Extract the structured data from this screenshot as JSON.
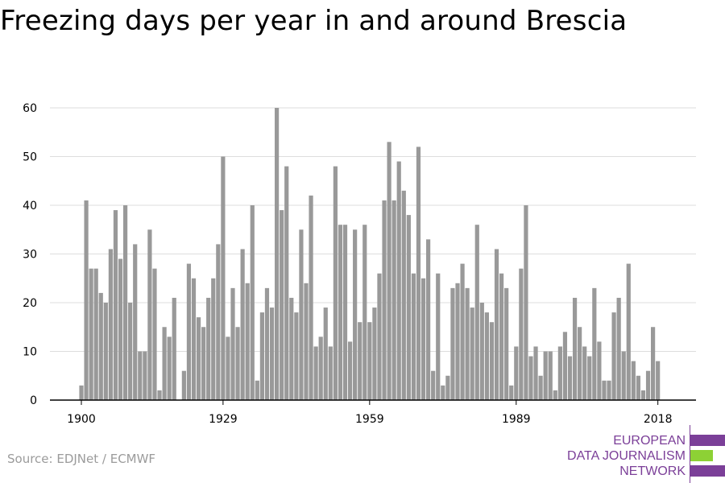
{
  "title": "Freezing days per year in and around Brescia",
  "source": "Source: EDJNet / ECMWF",
  "logo": {
    "lines": [
      "EUROPEAN",
      "DATA JOURNALISM",
      "NETWORK"
    ],
    "colors": {
      "purple": "#7b3f98",
      "green": "#8dd135"
    }
  },
  "colors": {
    "bar": "#999999",
    "grid": "#dddddd",
    "axis": "#000000"
  },
  "chart_data": {
    "type": "bar",
    "title": "Freezing days per year in and around Brescia",
    "xlabel": "",
    "ylabel": "",
    "ylim": [
      0,
      60
    ],
    "yticks": [
      0,
      10,
      20,
      30,
      40,
      50,
      60
    ],
    "xticks": [
      1900,
      1929,
      1959,
      1989,
      2018
    ],
    "grid": true,
    "x": [
      1900,
      1901,
      1902,
      1903,
      1904,
      1905,
      1906,
      1907,
      1908,
      1909,
      1910,
      1911,
      1912,
      1913,
      1914,
      1915,
      1916,
      1917,
      1918,
      1919,
      1920,
      1921,
      1922,
      1923,
      1924,
      1925,
      1926,
      1927,
      1928,
      1929,
      1930,
      1931,
      1932,
      1933,
      1934,
      1935,
      1936,
      1937,
      1938,
      1939,
      1940,
      1941,
      1942,
      1943,
      1944,
      1945,
      1946,
      1947,
      1948,
      1949,
      1950,
      1951,
      1952,
      1953,
      1954,
      1955,
      1956,
      1957,
      1958,
      1959,
      1960,
      1961,
      1962,
      1963,
      1964,
      1965,
      1966,
      1967,
      1968,
      1969,
      1970,
      1971,
      1972,
      1973,
      1974,
      1975,
      1976,
      1977,
      1978,
      1979,
      1980,
      1981,
      1982,
      1983,
      1984,
      1985,
      1986,
      1987,
      1988,
      1989,
      1990,
      1991,
      1992,
      1993,
      1994,
      1995,
      1996,
      1997,
      1998,
      1999,
      2000,
      2001,
      2002,
      2003,
      2004,
      2005,
      2006,
      2007,
      2008,
      2009,
      2010,
      2011,
      2012,
      2013,
      2014,
      2015,
      2016,
      2017,
      2018,
      2019
    ],
    "values": [
      3,
      41,
      27,
      27,
      22,
      20,
      31,
      39,
      29,
      40,
      20,
      32,
      10,
      10,
      35,
      27,
      2,
      15,
      13,
      21,
      0,
      6,
      28,
      25,
      17,
      15,
      21,
      25,
      32,
      50,
      13,
      23,
      15,
      31,
      24,
      40,
      4,
      18,
      23,
      19,
      60,
      39,
      48,
      21,
      18,
      35,
      24,
      42,
      11,
      13,
      19,
      11,
      48,
      36,
      36,
      12,
      35,
      16,
      36,
      16,
      19,
      26,
      41,
      53,
      41,
      49,
      43,
      38,
      26,
      52,
      25,
      33,
      6,
      26,
      3,
      5,
      23,
      24,
      28,
      23,
      19,
      36,
      20,
      18,
      16,
      31,
      26,
      23,
      3,
      11,
      27,
      40,
      9,
      11,
      5,
      10,
      10,
      2,
      11,
      14,
      9,
      21,
      15,
      11,
      9,
      23,
      12,
      4,
      4,
      18,
      21,
      10,
      28,
      8,
      5,
      2,
      6,
      15,
      8,
      0
    ]
  }
}
